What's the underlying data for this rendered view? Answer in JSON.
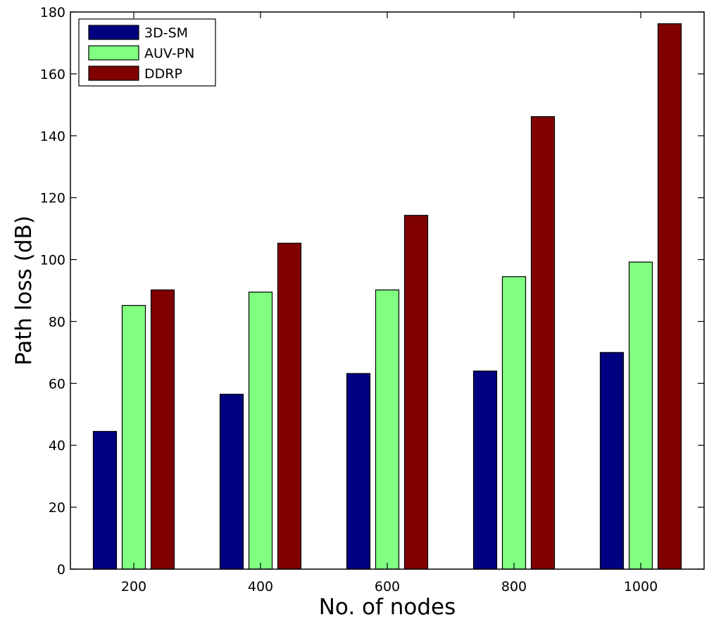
{
  "chart_data": {
    "type": "bar",
    "title": "",
    "xlabel": "No. of nodes",
    "ylabel": "Path loss (dB)",
    "categories": [
      "200",
      "400",
      "600",
      "800",
      "1000"
    ],
    "ylim": [
      0,
      180
    ],
    "yticks": [
      0,
      20,
      40,
      60,
      80,
      100,
      120,
      140,
      160,
      180
    ],
    "grid": false,
    "legend_position": "top-left",
    "series": [
      {
        "name": "3D-SM",
        "color": "#000080",
        "values": [
          44.5,
          56.5,
          63.2,
          64.0,
          70.0
        ]
      },
      {
        "name": "AUV-PN",
        "color": "#80ff80",
        "values": [
          85.2,
          89.5,
          90.2,
          94.5,
          99.2
        ]
      },
      {
        "name": "DDRP",
        "color": "#800000",
        "values": [
          90.2,
          105.3,
          114.3,
          146.2,
          176.2
        ]
      }
    ]
  }
}
